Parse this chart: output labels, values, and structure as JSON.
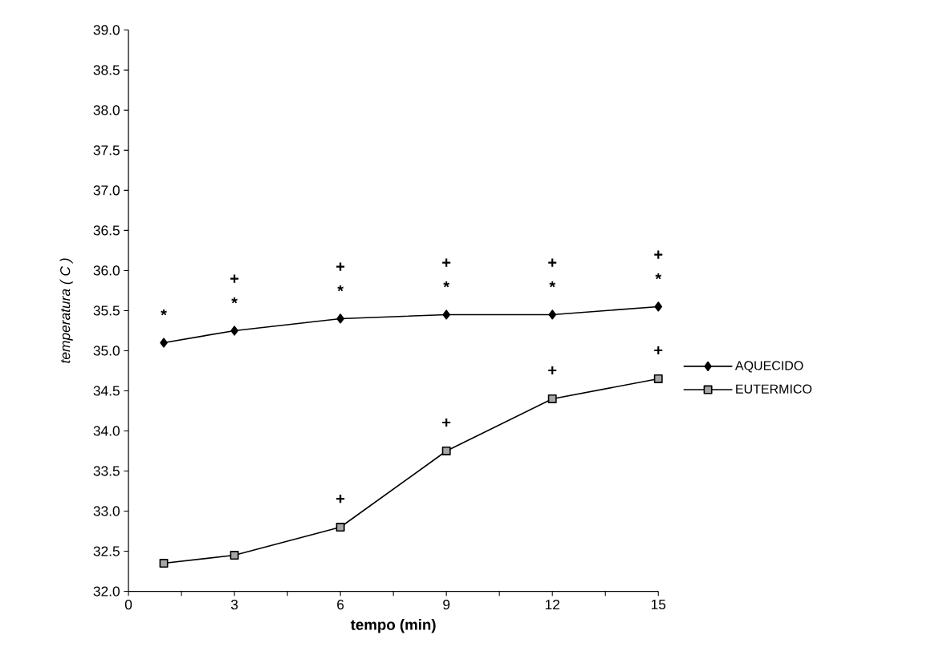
{
  "chart_data": {
    "type": "line",
    "xlabel": "tempo (min)",
    "ylabel": "temperatura ( C )",
    "x": [
      1,
      3,
      6,
      9,
      12,
      15
    ],
    "series": [
      {
        "name": "AQUECIDO",
        "color": "#000000",
        "marker": "diamond",
        "values": [
          35.1,
          35.25,
          35.4,
          35.45,
          35.45,
          35.55
        ]
      },
      {
        "name": "EUTERMICO",
        "color": "#000000",
        "marker": "square",
        "values": [
          32.35,
          32.45,
          32.8,
          33.75,
          34.4,
          34.65
        ]
      }
    ],
    "xlim": [
      0,
      15
    ],
    "ylim": [
      32,
      39
    ],
    "xticks": [
      0,
      {
        "value": 1.5,
        "label": null
      },
      3,
      {
        "value": 4.5,
        "label": null
      },
      6,
      {
        "value": 7.5,
        "label": null
      },
      9,
      {
        "value": 10.5,
        "label": null
      },
      12,
      {
        "value": 13.5,
        "label": null
      },
      15
    ],
    "yticks": [
      {
        "value": 32,
        "label": "32.0"
      },
      {
        "value": 32.5,
        "label": "32.5"
      },
      {
        "value": 33,
        "label": "33.0"
      },
      {
        "value": 33.5,
        "label": "33.5"
      },
      {
        "value": 34,
        "label": "34.0"
      },
      {
        "value": 34.5,
        "label": "34.5"
      },
      {
        "value": 35,
        "label": "35.0"
      },
      {
        "value": 35.5,
        "label": "35.5"
      },
      {
        "value": 36,
        "label": "36.0"
      },
      {
        "value": 36.5,
        "label": "36.5"
      },
      {
        "value": 37,
        "label": "37.0"
      },
      {
        "value": 37.5,
        "label": "37.5"
      },
      {
        "value": 38,
        "label": "38.0"
      },
      {
        "value": 38.5,
        "label": "38.5"
      },
      {
        "value": 39,
        "label": "39.0"
      }
    ],
    "annotations": [
      {
        "text": "*",
        "x": 1,
        "y": 35.1
      },
      {
        "text": "*",
        "x": 3,
        "y": 35.25
      },
      {
        "text": "+",
        "x": 3,
        "y": 35.25
      },
      {
        "text": "*",
        "x": 6,
        "y": 35.4
      },
      {
        "text": "+",
        "x": 6,
        "y": 35.4
      },
      {
        "text": "*",
        "x": 9,
        "y": 35.45
      },
      {
        "text": "+",
        "x": 9,
        "y": 35.45
      },
      {
        "text": "*",
        "x": 12,
        "y": 35.45
      },
      {
        "text": "+",
        "x": 12,
        "y": 35.45
      },
      {
        "text": "*",
        "x": 15,
        "y": 35.55
      },
      {
        "text": "+",
        "x": 15,
        "y": 35.55
      },
      {
        "text": "+",
        "x": 6,
        "y": 32.8
      },
      {
        "text": "+",
        "x": 9,
        "y": 33.75
      },
      {
        "text": "+",
        "x": 12,
        "y": 34.4
      },
      {
        "text": "+",
        "x": 15,
        "y": 34.65
      }
    ],
    "legend": "right",
    "grid": false,
    "line_style": "solid"
  }
}
